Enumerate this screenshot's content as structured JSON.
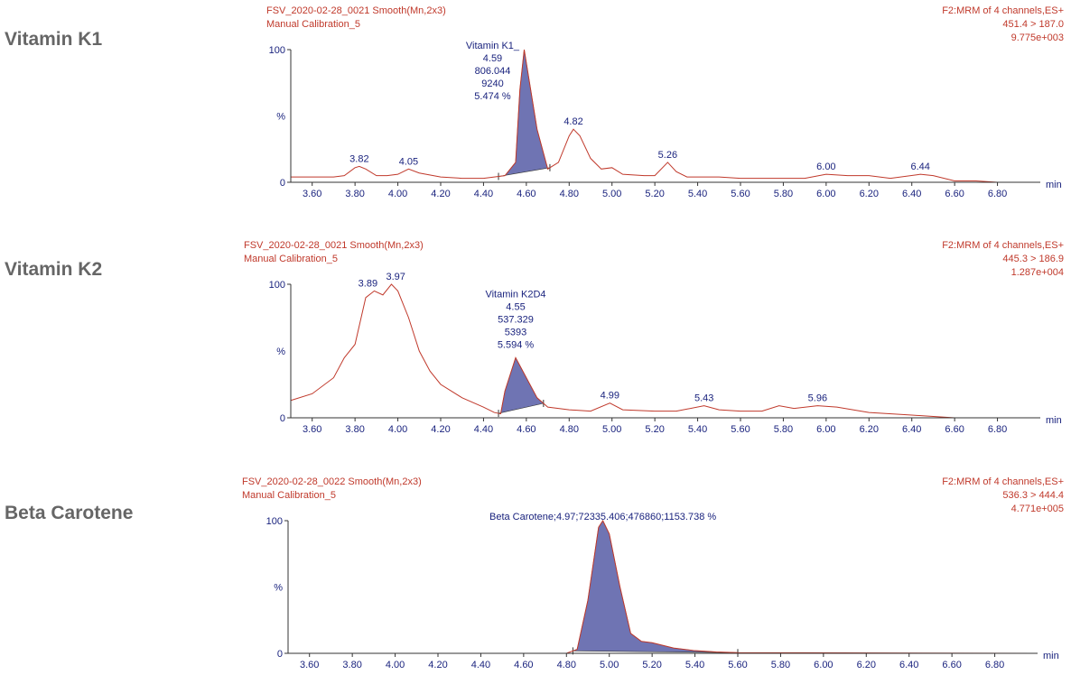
{
  "chart_data": [
    {
      "type": "line",
      "compound": "Vitamin K1",
      "header_left": [
        "FSV_2020-02-28_0021 Smooth(Mn,2x3)",
        "Manual Calibration_5"
      ],
      "header_right": [
        "F2:MRM of 4 channels,ES+",
        "451.4 > 187.0",
        "9.775e+003"
      ],
      "x_unit": "min",
      "y_unit": "%",
      "xlim": [
        3.5,
        7.0
      ],
      "xticks": [
        {
          "value": 3.6,
          "label": "3.60"
        },
        {
          "value": 3.8,
          "label": "3.80"
        },
        {
          "value": 4.0,
          "label": "4.00"
        },
        {
          "value": 4.2,
          "label": "4.20"
        },
        {
          "value": 4.4,
          "label": "4.40"
        },
        {
          "value": 4.6,
          "label": "4.60"
        },
        {
          "value": 4.8,
          "label": "4.80"
        },
        {
          "value": 5.0,
          "label": "5.00"
        },
        {
          "value": 5.2,
          "label": "5.20"
        },
        {
          "value": 5.4,
          "label": "5.40"
        },
        {
          "value": 5.6,
          "label": "5.60"
        },
        {
          "value": 5.8,
          "label": "5.80"
        },
        {
          "value": 6.0,
          "label": "6.00"
        },
        {
          "value": 6.2,
          "label": "6.20"
        },
        {
          "value": 6.4,
          "label": "6.40"
        },
        {
          "value": 6.6,
          "label": "6.60"
        },
        {
          "value": 6.8,
          "label": "6.80"
        }
      ],
      "ylim": [
        0,
        100
      ],
      "yticks": [
        0,
        100
      ],
      "series": [
        {
          "color": "#c0392b",
          "x": [
            3.5,
            3.6,
            3.7,
            3.75,
            3.8,
            3.82,
            3.85,
            3.9,
            3.95,
            4.0,
            4.05,
            4.1,
            4.2,
            4.3,
            4.4,
            4.45,
            4.5,
            4.55,
            4.57,
            4.59,
            4.62,
            4.65,
            4.7,
            4.75,
            4.8,
            4.82,
            4.85,
            4.9,
            4.95,
            5.0,
            5.05,
            5.15,
            5.2,
            5.26,
            5.3,
            5.35,
            5.5,
            5.6,
            5.8,
            5.9,
            6.0,
            6.1,
            6.2,
            6.3,
            6.44,
            6.5,
            6.6,
            6.7,
            6.8,
            7.0
          ],
          "values": [
            4,
            4,
            4,
            5,
            11,
            12,
            10,
            5,
            5,
            6,
            10,
            7,
            4,
            3,
            3,
            4,
            5,
            15,
            70,
            100,
            70,
            40,
            10,
            15,
            35,
            40,
            35,
            18,
            10,
            11,
            6,
            5,
            5,
            15,
            8,
            4,
            4,
            3,
            3,
            3,
            6,
            5,
            5,
            3,
            6,
            5,
            1,
            1,
            0,
            0
          ]
        }
      ],
      "peak_area": [
        4.47,
        4.71
      ],
      "peak_color": "#6f74b3",
      "peak_label": [
        "Vitamin K1_",
        "4.59",
        "806.044",
        "9240",
        "5.474 %"
      ],
      "annotations": [
        {
          "label": "3.82",
          "x": 3.82,
          "y": 12
        },
        {
          "label": "4.05",
          "x": 4.05,
          "y": 10
        },
        {
          "label": "4.82",
          "x": 4.82,
          "y": 40
        },
        {
          "label": "5.26",
          "x": 5.26,
          "y": 15
        },
        {
          "label": "6.00",
          "x": 6.0,
          "y": 6
        },
        {
          "label": "6.44",
          "x": 6.44,
          "y": 6
        }
      ]
    },
    {
      "type": "line",
      "compound": "Vitamin K2",
      "header_left": [
        "FSV_2020-02-28_0021 Smooth(Mn,2x3)",
        "Manual Calibration_5"
      ],
      "header_right": [
        "F2:MRM of 4 channels,ES+",
        "445.3 > 186.9",
        "1.287e+004"
      ],
      "x_unit": "min",
      "y_unit": "%",
      "xlim": [
        3.5,
        7.0
      ],
      "xticks": [
        {
          "value": 3.6,
          "label": "3.60"
        },
        {
          "value": 3.8,
          "label": "3.80"
        },
        {
          "value": 4.0,
          "label": "4.00"
        },
        {
          "value": 4.2,
          "label": "4.20"
        },
        {
          "value": 4.4,
          "label": "4.40"
        },
        {
          "value": 4.6,
          "label": "4.60"
        },
        {
          "value": 4.8,
          "label": "4.80"
        },
        {
          "value": 5.0,
          "label": "5.00"
        },
        {
          "value": 5.2,
          "label": "5.20"
        },
        {
          "value": 5.4,
          "label": "5.40"
        },
        {
          "value": 5.6,
          "label": "5.60"
        },
        {
          "value": 5.8,
          "label": "5.80"
        },
        {
          "value": 6.0,
          "label": "6.00"
        },
        {
          "value": 6.2,
          "label": "6.20"
        },
        {
          "value": 6.4,
          "label": "6.40"
        },
        {
          "value": 6.6,
          "label": "6.60"
        },
        {
          "value": 6.8,
          "label": "6.80"
        }
      ],
      "ylim": [
        0,
        100
      ],
      "yticks": [
        0,
        100
      ],
      "series": [
        {
          "color": "#c0392b",
          "x": [
            3.5,
            3.6,
            3.7,
            3.75,
            3.8,
            3.85,
            3.89,
            3.93,
            3.97,
            4.0,
            4.05,
            4.1,
            4.15,
            4.2,
            4.3,
            4.4,
            4.45,
            4.48,
            4.5,
            4.55,
            4.6,
            4.65,
            4.7,
            4.8,
            4.9,
            4.99,
            5.05,
            5.2,
            5.3,
            5.43,
            5.5,
            5.6,
            5.7,
            5.78,
            5.85,
            5.96,
            6.05,
            6.2,
            6.4,
            6.5,
            6.6,
            7.0
          ],
          "values": [
            13,
            18,
            30,
            45,
            55,
            90,
            95,
            92,
            100,
            95,
            75,
            50,
            35,
            25,
            15,
            8,
            4,
            3,
            20,
            45,
            30,
            15,
            8,
            6,
            5,
            11,
            6,
            5,
            5,
            9,
            6,
            5,
            5,
            9,
            7,
            9,
            8,
            4,
            2,
            1,
            0,
            0
          ]
        }
      ],
      "peak_area": [
        4.47,
        4.68
      ],
      "peak_color": "#6f74b3",
      "peak_label": [
        "Vitamin K2D4",
        "4.55",
        "537.329",
        "5393",
        "5.594 %"
      ],
      "annotations": [
        {
          "label": "3.89",
          "x": 3.86,
          "y": 95
        },
        {
          "label": "3.97",
          "x": 3.99,
          "y": 100
        },
        {
          "label": "4.99",
          "x": 4.99,
          "y": 11
        },
        {
          "label": "5.43",
          "x": 5.43,
          "y": 9
        },
        {
          "label": "5.96",
          "x": 5.96,
          "y": 9
        }
      ]
    },
    {
      "type": "line",
      "compound": "Beta Carotene",
      "header_left": [
        "FSV_2020-02-28_0022 Smooth(Mn,2x3)",
        "Manual Calibration_5"
      ],
      "header_right": [
        "F2:MRM of 4 channels,ES+",
        "536.3 > 444.4",
        "4.771e+005"
      ],
      "x_unit": "min",
      "y_unit": "%",
      "xlim": [
        3.5,
        7.0
      ],
      "xticks": [
        {
          "value": 3.6,
          "label": "3.60"
        },
        {
          "value": 3.8,
          "label": "3.80"
        },
        {
          "value": 4.0,
          "label": "4.00"
        },
        {
          "value": 4.2,
          "label": "4.20"
        },
        {
          "value": 4.4,
          "label": "4.40"
        },
        {
          "value": 4.6,
          "label": "4.60"
        },
        {
          "value": 4.8,
          "label": "4.80"
        },
        {
          "value": 5.0,
          "label": "5.00"
        },
        {
          "value": 5.2,
          "label": "5.20"
        },
        {
          "value": 5.4,
          "label": "5.40"
        },
        {
          "value": 5.6,
          "label": "5.60"
        },
        {
          "value": 5.8,
          "label": "5.80"
        },
        {
          "value": 6.0,
          "label": "6.00"
        },
        {
          "value": 6.2,
          "label": "6.20"
        },
        {
          "value": 6.4,
          "label": "6.40"
        },
        {
          "value": 6.6,
          "label": "6.60"
        },
        {
          "value": 6.8,
          "label": "6.80"
        }
      ],
      "ylim": [
        0,
        100
      ],
      "yticks": [
        0,
        100
      ],
      "series": [
        {
          "color": "#c0392b",
          "x": [
            3.5,
            4.8,
            4.85,
            4.9,
            4.95,
            4.97,
            5.0,
            5.05,
            5.1,
            5.15,
            5.2,
            5.3,
            5.4,
            5.5,
            5.6,
            7.0
          ],
          "values": [
            0,
            0,
            3,
            40,
            95,
            100,
            90,
            50,
            15,
            9,
            8,
            4,
            2,
            1,
            0.5,
            0
          ]
        }
      ],
      "peak_area": [
        4.83,
        5.6
      ],
      "peak_color": "#6f74b3",
      "peak_label": [
        "Beta Carotene;4.97;72335.406;476860;1153.738 %"
      ],
      "annotations": []
    }
  ]
}
